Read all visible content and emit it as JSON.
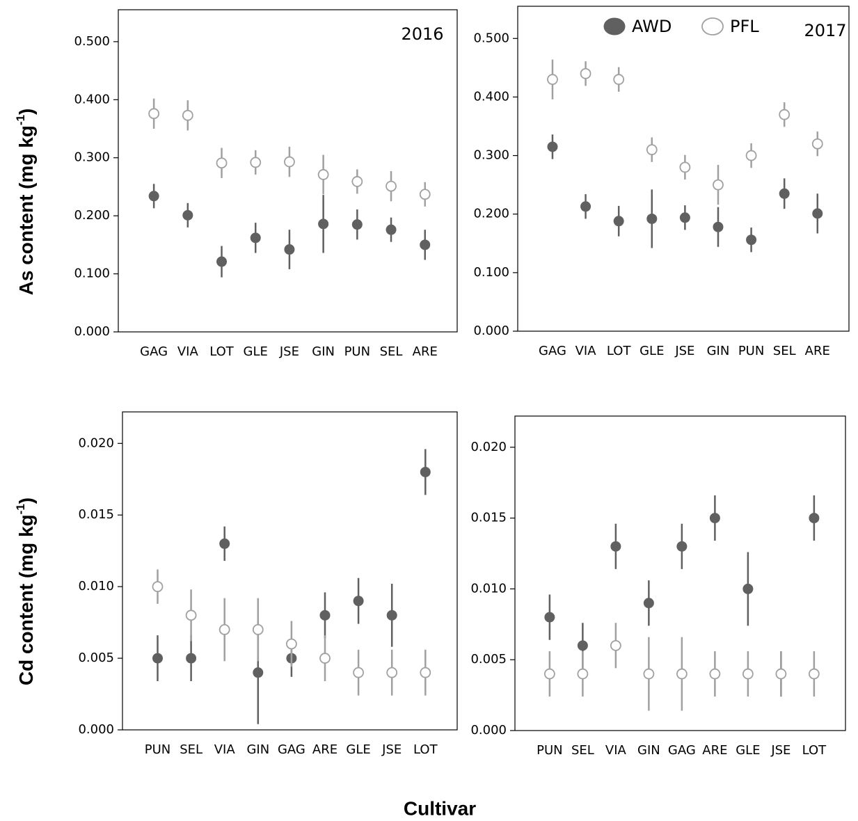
{
  "xlabel": "Cultivar",
  "chart_data": [
    {
      "type": "errorbar",
      "annotation": "2016",
      "ylabel": [
        "As content (mg kg",
        "-1",
        ")"
      ],
      "categories": [
        "GAG",
        "VIA",
        "LOT",
        "GLE",
        "JSE",
        "GIN",
        "PUN",
        "SEL",
        "ARE"
      ],
      "series": [
        {
          "color": "#606060",
          "marker": "filled",
          "values": [
            0.234,
            0.201,
            0.121,
            0.162,
            0.142,
            0.186,
            0.185,
            0.176,
            0.15
          ],
          "errors": [
            0.021,
            0.021,
            0.027,
            0.026,
            0.034,
            0.05,
            0.026,
            0.021,
            0.026
          ]
        },
        {
          "color": "#a0a0a0",
          "marker": "open",
          "values": [
            0.376,
            0.373,
            0.291,
            0.292,
            0.293,
            0.271,
            0.259,
            0.251,
            0.237
          ],
          "errors": [
            0.026,
            0.026,
            0.026,
            0.021,
            0.026,
            0.034,
            0.021,
            0.026,
            0.021
          ]
        }
      ],
      "ylim": [
        0,
        0.555
      ],
      "yticks": [
        {
          "value": 0,
          "label": "0.000"
        },
        {
          "value": 0.1,
          "label": "0.100"
        },
        {
          "value": 0.2,
          "label": "0.200"
        },
        {
          "value": 0.3,
          "label": "0.300"
        },
        {
          "value": 0.4,
          "label": "0.400"
        },
        {
          "value": 0.5,
          "label": "0.500"
        }
      ]
    },
    {
      "type": "errorbar",
      "annotation": "2017",
      "legend": "top",
      "categories": [
        "GAG",
        "VIA",
        "LOT",
        "GLE",
        "JSE",
        "GIN",
        "PUN",
        "SEL",
        "ARE"
      ],
      "series": [
        {
          "name": "AWD",
          "color": "#606060",
          "marker": "filled",
          "values": [
            0.315,
            0.213,
            0.188,
            0.192,
            0.194,
            0.178,
            0.156,
            0.235,
            0.201
          ],
          "errors": [
            0.021,
            0.021,
            0.026,
            0.05,
            0.021,
            0.034,
            0.021,
            0.026,
            0.034
          ]
        },
        {
          "name": "PFL",
          "color": "#a0a0a0",
          "marker": "open",
          "values": [
            0.43,
            0.44,
            0.43,
            0.31,
            0.28,
            0.25,
            0.3,
            0.37,
            0.32
          ],
          "errors": [
            0.034,
            0.021,
            0.021,
            0.021,
            0.021,
            0.034,
            0.021,
            0.021,
            0.021
          ]
        }
      ],
      "ylim": [
        0,
        0.555
      ],
      "yticks": [
        {
          "value": 0,
          "label": "0.000"
        },
        {
          "value": 0.1,
          "label": "0.100"
        },
        {
          "value": 0.2,
          "label": "0.200"
        },
        {
          "value": 0.3,
          "label": "0.300"
        },
        {
          "value": 0.4,
          "label": "0.400"
        },
        {
          "value": 0.5,
          "label": "0.500"
        }
      ]
    },
    {
      "type": "errorbar",
      "ylabel": [
        "Cd content (mg kg",
        "-1",
        ")"
      ],
      "categories": [
        "PUN",
        "SEL",
        "VIA",
        "GIN",
        "GAG",
        "ARE",
        "GLE",
        "JSE",
        "LOT"
      ],
      "series": [
        {
          "color": "#606060",
          "marker": "filled",
          "values": [
            0.005,
            0.005,
            0.013,
            0.004,
            0.005,
            0.008,
            0.009,
            0.008,
            0.018
          ],
          "errors": [
            0.0016,
            0.0016,
            0.0012,
            0.0036,
            0.0013,
            0.0016,
            0.0016,
            0.0022,
            0.0016
          ]
        },
        {
          "color": "#a0a0a0",
          "marker": "open",
          "values": [
            0.01,
            0.008,
            0.007,
            0.007,
            0.006,
            0.005,
            0.004,
            0.004,
            0.004
          ],
          "errors": [
            0.0012,
            0.0018,
            0.0022,
            0.0022,
            0.0016,
            0.0016,
            0.0016,
            0.0016,
            0.0016
          ]
        }
      ],
      "ylim": [
        0,
        0.0222
      ],
      "yticks": [
        {
          "value": 0,
          "label": "0.000"
        },
        {
          "value": 0.005,
          "label": "0.005"
        },
        {
          "value": 0.01,
          "label": "0.010"
        },
        {
          "value": 0.015,
          "label": "0.015"
        },
        {
          "value": 0.02,
          "label": "0.020"
        }
      ]
    },
    {
      "type": "errorbar",
      "categories": [
        "PUN",
        "SEL",
        "VIA",
        "GIN",
        "GAG",
        "ARE",
        "GLE",
        "JSE",
        "LOT"
      ],
      "series": [
        {
          "color": "#606060",
          "marker": "filled",
          "values": [
            0.008,
            0.006,
            0.013,
            0.009,
            0.013,
            0.015,
            0.01,
            0.004,
            0.015
          ],
          "errors": [
            0.0016,
            0.0016,
            0.0016,
            0.0016,
            0.0016,
            0.0016,
            0.0026,
            0.0016,
            0.0016
          ]
        },
        {
          "color": "#a0a0a0",
          "marker": "open",
          "values": [
            0.004,
            0.004,
            0.006,
            0.004,
            0.004,
            0.004,
            0.004,
            0.004,
            0.004
          ],
          "errors": [
            0.0016,
            0.0016,
            0.0016,
            0.0026,
            0.0026,
            0.0016,
            0.0016,
            0.0016,
            0.0016
          ]
        }
      ],
      "ylim": [
        0,
        0.0222
      ],
      "yticks": [
        {
          "value": 0,
          "label": "0.000"
        },
        {
          "value": 0.005,
          "label": "0.005"
        },
        {
          "value": 0.01,
          "label": "0.010"
        },
        {
          "value": 0.015,
          "label": "0.015"
        },
        {
          "value": 0.02,
          "label": "0.020"
        }
      ]
    }
  ]
}
